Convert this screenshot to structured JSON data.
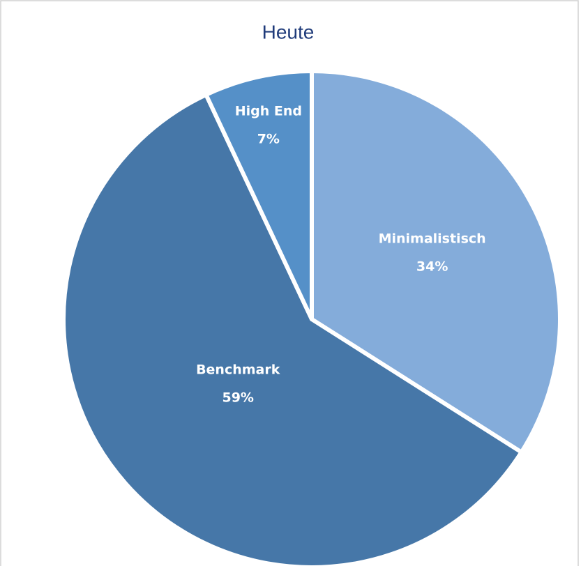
{
  "chart_data": {
    "type": "pie",
    "title": "Heute",
    "categories": [
      "Minimalistisch",
      "Benchmark",
      "High End"
    ],
    "values": [
      34,
      59,
      7
    ],
    "value_labels": [
      "34%",
      "59%",
      "7%"
    ],
    "colors": [
      "#84acda",
      "#4677a8",
      "#5590c8"
    ]
  }
}
